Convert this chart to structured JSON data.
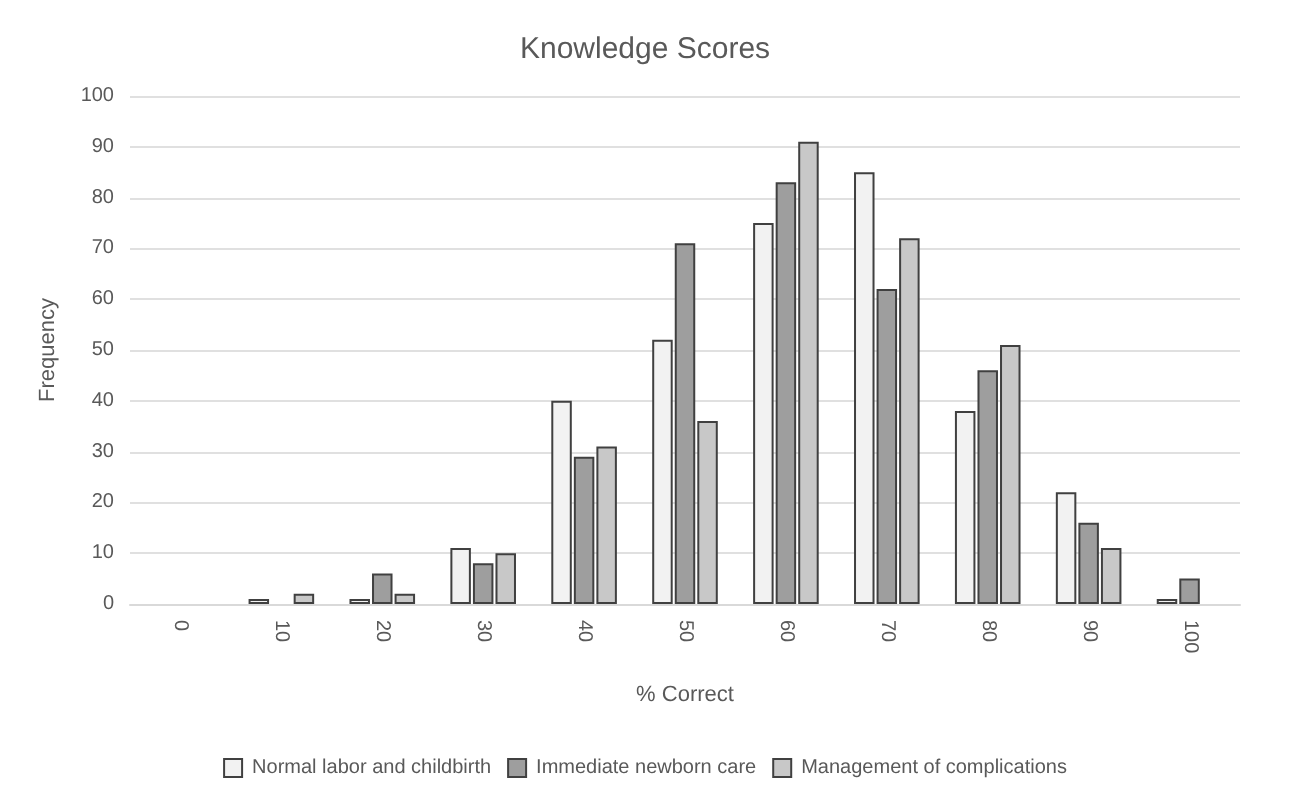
{
  "chart_data": {
    "type": "bar",
    "title": "Knowledge Scores",
    "xlabel": "% Correct",
    "ylabel": "Frequency",
    "categories": [
      "0",
      "10",
      "20",
      "30",
      "40",
      "50",
      "60",
      "70",
      "80",
      "90",
      "100"
    ],
    "series": [
      {
        "name": "Normal labor and childbirth",
        "color": "#f2f2f2",
        "values": [
          0,
          1,
          1,
          11,
          40,
          52,
          75,
          85,
          38,
          22,
          1
        ]
      },
      {
        "name": "Immediate newborn care",
        "color": "#9e9e9e",
        "values": [
          0,
          0,
          6,
          8,
          29,
          71,
          83,
          62,
          46,
          16,
          5
        ]
      },
      {
        "name": "Management of complications",
        "color": "#c8c8c8",
        "values": [
          0,
          2,
          2,
          10,
          31,
          36,
          91,
          72,
          51,
          11,
          0
        ]
      }
    ],
    "ylim": [
      0,
      100
    ],
    "yticks": [
      0,
      10,
      20,
      30,
      40,
      50,
      60,
      70,
      80,
      90,
      100
    ],
    "grid": "y",
    "legend": "bottom"
  }
}
